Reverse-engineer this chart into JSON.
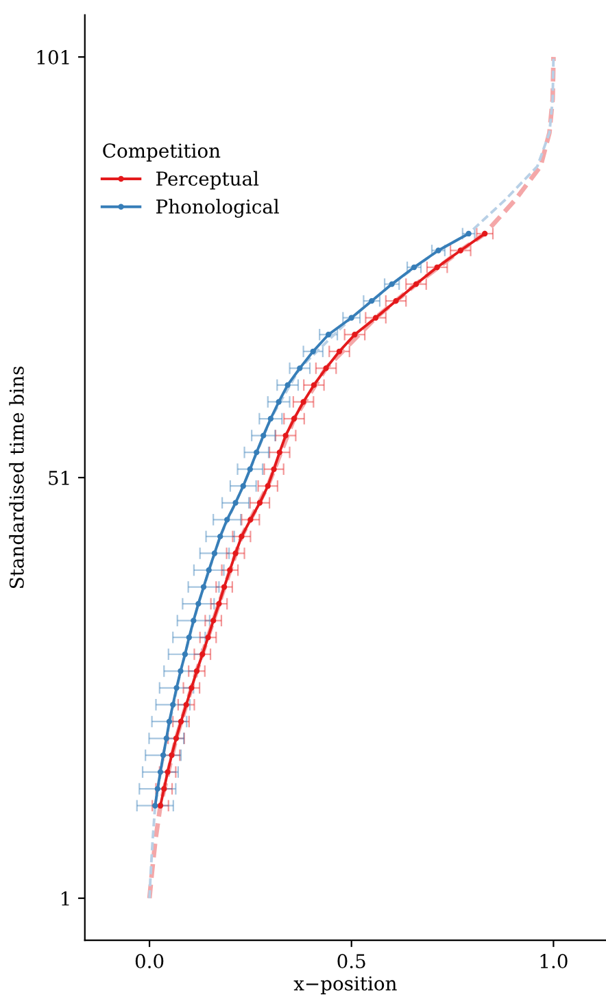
{
  "chart_data": {
    "type": "line",
    "xlabel": "x−position",
    "ylabel": "Standardised time bins",
    "legend_title": "Competition",
    "legend": "top left",
    "grid": false,
    "xlim": [
      -0.16,
      1.13
    ],
    "ylim": [
      -4,
      106
    ],
    "xticks": [
      {
        "value": 0,
        "label": "0.0"
      },
      {
        "value": 0.5,
        "label": "0.5"
      },
      {
        "value": 1,
        "label": "1.0"
      }
    ],
    "yticks": [
      1,
      51,
      101
    ],
    "series": [
      {
        "color": "#f4a7a8",
        "line_style": "dashed",
        "marker": "none",
        "x": [
          0.0,
          0.006,
          0.015,
          0.027,
          0.066,
          0.117,
          0.172,
          0.228,
          0.293,
          0.358,
          0.437,
          0.56,
          0.66,
          0.77,
          0.83,
          0.905,
          0.968,
          0.99,
          0.998,
          1.0
        ],
        "values": [
          1,
          4,
          8,
          12,
          20,
          28,
          36,
          44,
          50,
          58,
          64,
          70,
          74,
          78,
          80,
          84,
          88,
          92,
          96,
          101
        ]
      },
      {
        "color": "#b8d0e6",
        "line_style": "dashed",
        "marker": "none",
        "x": [
          0.0,
          0.003,
          0.008,
          0.014,
          0.042,
          0.077,
          0.121,
          0.175,
          0.232,
          0.3,
          0.372,
          0.5,
          0.6,
          0.715,
          0.79,
          0.88,
          0.96,
          0.99,
          0.998,
          1.0
        ],
        "values": [
          1,
          4,
          8,
          12,
          20,
          28,
          36,
          44,
          50,
          58,
          64,
          70,
          74,
          78,
          80,
          84,
          88,
          92,
          96,
          101
        ]
      },
      {
        "name": "Perceptual",
        "color": "#e41a1c",
        "line_style": "solid",
        "marker": "circle",
        "x": [
          0.027,
          0.036,
          0.045,
          0.055,
          0.066,
          0.078,
          0.091,
          0.104,
          0.117,
          0.131,
          0.145,
          0.158,
          0.172,
          0.185,
          0.199,
          0.213,
          0.228,
          0.25,
          0.273,
          0.293,
          0.308,
          0.322,
          0.337,
          0.358,
          0.381,
          0.407,
          0.437,
          0.47,
          0.508,
          0.56,
          0.61,
          0.66,
          0.712,
          0.77,
          0.83
        ],
        "values": [
          12,
          14,
          16,
          18,
          20,
          22,
          24,
          26,
          28,
          30,
          32,
          34,
          36,
          38,
          40,
          42,
          44,
          46,
          48,
          50,
          52,
          54,
          56,
          58,
          60,
          62,
          64,
          66,
          68,
          70,
          72,
          74,
          76,
          78,
          80
        ],
        "xerrors": [
          0.02,
          0.02,
          0.02,
          0.02,
          0.02,
          0.02,
          0.02,
          0.02,
          0.02,
          0.02,
          0.02,
          0.02,
          0.02,
          0.02,
          0.02,
          0.022,
          0.022,
          0.022,
          0.024,
          0.024,
          0.024,
          0.025,
          0.025,
          0.025,
          0.025,
          0.025,
          0.025,
          0.025,
          0.025,
          0.025,
          0.025,
          0.025,
          0.025,
          0.025,
          0.02
        ]
      },
      {
        "name": "Phonological",
        "color": "#377eb8",
        "line_style": "solid",
        "marker": "circle",
        "x": [
          0.014,
          0.02,
          0.027,
          0.034,
          0.042,
          0.049,
          0.058,
          0.067,
          0.077,
          0.088,
          0.098,
          0.109,
          0.121,
          0.134,
          0.147,
          0.161,
          0.175,
          0.192,
          0.213,
          0.232,
          0.249,
          0.265,
          0.282,
          0.3,
          0.32,
          0.342,
          0.372,
          0.405,
          0.443,
          0.5,
          0.55,
          0.6,
          0.655,
          0.715,
          0.79
        ],
        "values": [
          12,
          14,
          16,
          18,
          20,
          22,
          24,
          26,
          28,
          30,
          32,
          34,
          36,
          38,
          40,
          42,
          44,
          46,
          48,
          50,
          52,
          54,
          56,
          58,
          60,
          62,
          64,
          66,
          68,
          70,
          72,
          74,
          76,
          78,
          80
        ],
        "xerrors": [
          0.045,
          0.045,
          0.044,
          0.044,
          0.043,
          0.043,
          0.042,
          0.042,
          0.041,
          0.041,
          0.04,
          0.04,
          0.039,
          0.038,
          0.037,
          0.036,
          0.035,
          0.034,
          0.033,
          0.032,
          0.031,
          0.03,
          0.029,
          0.028,
          0.027,
          0.026,
          0.025,
          0.024,
          0.022,
          0.021,
          0.02,
          0.018,
          0.017,
          0.016,
          0.015
        ]
      }
    ]
  }
}
